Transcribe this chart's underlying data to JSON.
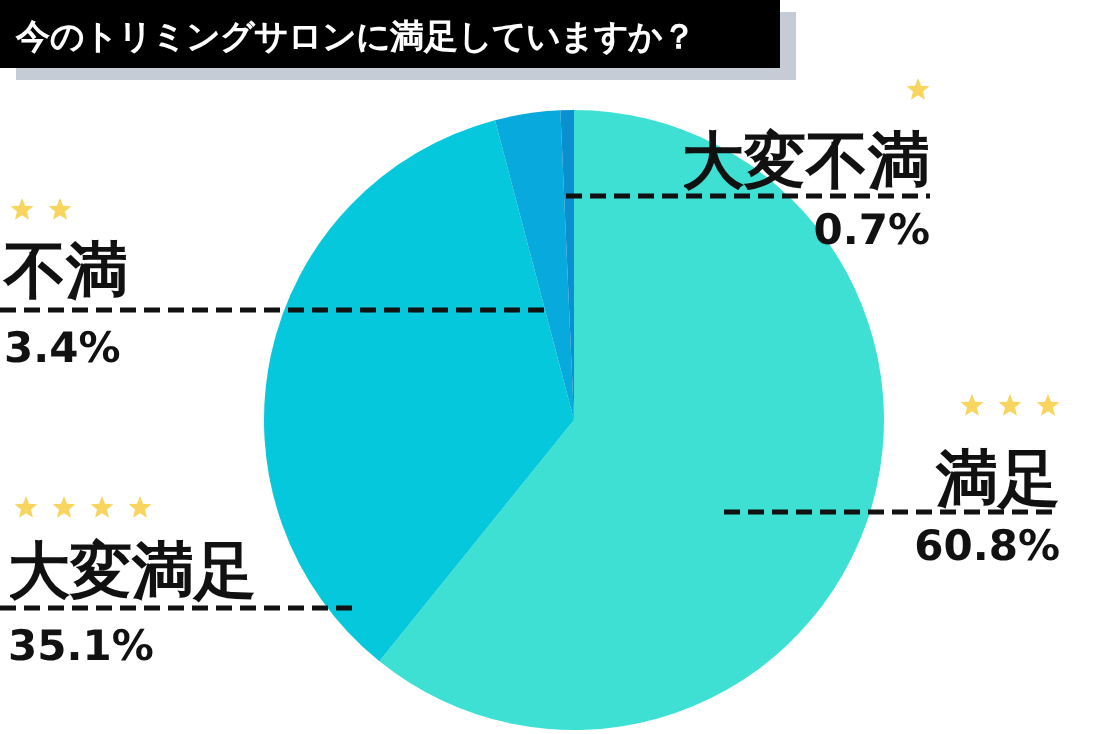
{
  "chart_data": {
    "type": "pie",
    "title": "今のトリミングサロンに満足していますか？",
    "categories": [
      "満足",
      "大変満足",
      "不満",
      "大変不満"
    ],
    "values": [
      60.8,
      35.1,
      3.4,
      0.7
    ],
    "colors": [
      "#3ee0d4",
      "#06c8dc",
      "#08a9dc",
      "#0a8fd0"
    ],
    "value_labels": [
      "60.8%",
      "35.1%",
      "3.4%",
      "0.7%"
    ]
  }
}
